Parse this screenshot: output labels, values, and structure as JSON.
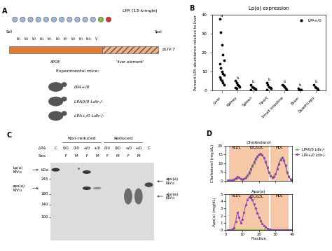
{
  "panels": {
    "A": {
      "letter": "A",
      "gene_label": "LPA (13-kringle)",
      "kringle_labels": [
        "IV₁",
        "IV₂",
        "IV₃",
        "IV₄",
        "IV₅",
        "IV₆",
        "IV₇",
        "IV₈",
        "IV₉",
        "IV₁₀",
        "V"
      ],
      "construct_label": "pLIV.7",
      "sites": [
        "SalI",
        "SpeI"
      ],
      "elements": [
        "APOE",
        "'liver element'"
      ],
      "mice_title": "Experimental mice:",
      "mice": [
        "LPA+/0",
        "LPA0/0 Ldlr-/-",
        "LPA+/0 Ldlr-/-"
      ]
    },
    "C": {
      "letter": "C",
      "groups": [
        "Non-reduced",
        "Reduced"
      ],
      "row_labels": [
        "LPA",
        "Sex"
      ],
      "genotypes": [
        "C",
        "0/0",
        "0/0",
        "+/0",
        "+/0",
        "0/0",
        "0/0",
        "+/0",
        "+/0",
        "C"
      ],
      "sexes": [
        null,
        "F",
        "M",
        "F",
        "M",
        "F",
        "M",
        "F",
        "M",
        null
      ],
      "band_labels_left": [
        "Lp(a)\nKIV₁₆",
        "apo(a)\nKIV₁₃"
      ],
      "band_labels_right": [
        "apo(a)\nKIV₁₆",
        "apo(a)\nKIV₁₃"
      ],
      "star": "*",
      "marker_unit": "kDa",
      "markers": [
        245,
        180,
        140,
        100
      ]
    },
    "D": {
      "letter": "D"
    }
  },
  "chart_data": [
    {
      "type": "scatter",
      "panel": "B",
      "title": "Lp(a) expression",
      "y_label": "Percent LPA abundance relative to liver",
      "categories": [
        "Liver",
        "Kidney",
        "Spleen",
        "Heart",
        "Small Intestine",
        "Brain",
        "Quadriceps"
      ],
      "series": [
        {
          "name": "LPA+/0",
          "color": "#000000",
          "marker": "o",
          "values": [
            [
              38,
              31,
              24,
              19,
              16,
              14,
              12,
              10,
              9,
              8,
              7,
              6,
              5,
              4,
              3
            ],
            [
              5,
              4,
              3,
              2.5,
              2,
              1.5,
              1
            ],
            [
              3,
              2,
              1.5,
              1,
              0.8,
              0.5
            ],
            [
              4,
              3,
              2,
              1.5,
              1,
              0.5
            ],
            [
              3,
              2.5,
              2,
              1,
              0.5
            ],
            [
              1,
              0.5,
              0.3,
              0.2
            ],
            [
              3,
              2,
              1.5,
              1,
              0.5
            ]
          ]
        }
      ],
      "annotations": [
        "a",
        "b",
        "b",
        "b",
        "b",
        "b",
        "b"
      ],
      "ylim": [
        0,
        40
      ],
      "yticks": [
        0,
        10,
        20,
        30,
        40
      ],
      "legend": "upper right"
    },
    {
      "type": "line",
      "title": "Cholesterol",
      "y_label": "Cholesterol (mg/dL)",
      "x": [
        1,
        2,
        3,
        4,
        5,
        6,
        7,
        8,
        9,
        10,
        11,
        12,
        13,
        14,
        15,
        16,
        17,
        18,
        19,
        20,
        21,
        22,
        23,
        24,
        25,
        26,
        27,
        28,
        29,
        30,
        31,
        32,
        33,
        34,
        35,
        36,
        37,
        38,
        39,
        40
      ],
      "regions": [
        {
          "label": "VLDL",
          "start": 2,
          "end": 11
        },
        {
          "label": "IDL/LDL",
          "start": 11,
          "end": 26
        },
        {
          "label": "HDL",
          "start": 27,
          "end": 38
        }
      ],
      "series": [
        {
          "name": "LPA0/0 Ldlr-/-",
          "color": "#7ac143",
          "marker": "o",
          "line_style": "solid",
          "values": [
            0.2,
            0.3,
            0.3,
            0.4,
            0.6,
            1.2,
            2.0,
            1.8,
            1.0,
            0.8,
            1.0,
            1.5,
            2.5,
            4,
            6,
            8,
            10,
            12,
            13.5,
            14.5,
            15,
            14.5,
            13,
            11,
            8,
            5,
            3,
            2,
            2.5,
            4,
            7,
            10,
            12.5,
            13.5,
            12,
            9,
            5,
            2.5,
            1,
            0.5
          ]
        },
        {
          "name": "LPA+/0 Ldlr-/-",
          "color": "#8e44ad",
          "marker": "o",
          "line_style": "solid",
          "values": [
            0.2,
            0.3,
            0.4,
            0.5,
            0.8,
            1.5,
            2.3,
            2.0,
            1.2,
            0.9,
            1.1,
            1.8,
            3,
            4.5,
            6.5,
            8.5,
            10.5,
            12.5,
            14,
            15,
            15.5,
            14.8,
            13,
            10.5,
            7.5,
            4.5,
            2.8,
            2,
            2.3,
            3.8,
            6.5,
            9.5,
            12,
            13,
            11.5,
            8.5,
            4.5,
            2.2,
            0.9,
            0.4
          ]
        }
      ],
      "xlim": [
        0,
        40
      ],
      "xticks": [
        0,
        10,
        20,
        30,
        40
      ],
      "ylim": [
        0,
        20
      ],
      "yticks": [
        0,
        5,
        10,
        15,
        20
      ],
      "legend": "upper left",
      "tick_labels": "y"
    },
    {
      "type": "line",
      "title": "Apo(a)",
      "y_label": "Apo(a) (mg/dL)",
      "x_label": "Fraction",
      "x": [
        1,
        2,
        3,
        4,
        5,
        6,
        7,
        8,
        9,
        10,
        11,
        12,
        13,
        14,
        15,
        16,
        17,
        18,
        19,
        20,
        21,
        22,
        23,
        24,
        25,
        26,
        27,
        28,
        29,
        30,
        31,
        32,
        33,
        34,
        35,
        36,
        37,
        38,
        39,
        40
      ],
      "regions": [
        {
          "label": "VLDL",
          "start": 2,
          "end": 11
        },
        {
          "label": "IDL/LDL",
          "start": 11,
          "end": 26
        },
        {
          "label": "HDL",
          "start": 27,
          "end": 38
        }
      ],
      "series": [
        {
          "name": "LPA0/0 Ldlr-/-",
          "color": "#7ac143",
          "marker": "o",
          "line_style": "solid",
          "values": [
            0,
            0,
            0,
            0,
            0,
            0,
            0,
            0,
            0,
            0,
            0,
            0,
            0,
            0,
            0,
            0,
            0,
            0,
            0,
            0,
            0,
            0,
            0,
            0,
            0,
            0,
            0,
            0,
            0,
            0,
            0,
            0,
            0,
            0,
            0,
            0,
            0,
            0,
            0,
            0
          ]
        },
        {
          "name": "LPA+/0 Ldlr-/-",
          "color": "#8e44ad",
          "marker": "o",
          "line_style": "solid",
          "values": [
            0,
            0,
            0,
            0.1,
            0.3,
            1.2,
            2.5,
            1.8,
            1.0,
            1.5,
            2.5,
            3.5,
            4.2,
            4.6,
            4.5,
            4.2,
            3.6,
            3.0,
            2.4,
            1.8,
            1.3,
            0.9,
            0.6,
            0.4,
            0.2,
            0.1,
            0.05,
            0,
            0,
            0,
            0,
            0,
            0,
            0,
            0,
            0,
            0,
            0,
            0,
            0
          ]
        }
      ],
      "xlim": [
        0,
        40
      ],
      "xticks": [
        0,
        10,
        20,
        30,
        40
      ],
      "ylim": [
        0,
        5
      ],
      "yticks": [
        0,
        1,
        2,
        3,
        4,
        5
      ]
    }
  ]
}
